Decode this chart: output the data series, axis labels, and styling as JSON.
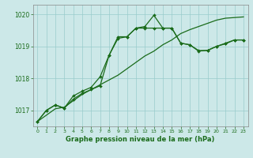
{
  "title": "Graphe pression niveau de la mer (hPa)",
  "bg_color": "#cce8e8",
  "grid_color": "#99cccc",
  "line_color": "#1a6b1a",
  "xlim": [
    -0.5,
    23.5
  ],
  "ylim": [
    1016.5,
    1020.3
  ],
  "yticks": [
    1017,
    1018,
    1019,
    1020
  ],
  "xticks": [
    0,
    1,
    2,
    3,
    4,
    5,
    6,
    7,
    8,
    9,
    10,
    11,
    12,
    13,
    14,
    15,
    16,
    17,
    18,
    19,
    20,
    21,
    22,
    23
  ],
  "line1_x": [
    0,
    1,
    2,
    3,
    4,
    5,
    6,
    7,
    8,
    9,
    10,
    11,
    12,
    13,
    14,
    15,
    16,
    17,
    18,
    19,
    20,
    21,
    22,
    23
  ],
  "line1_y": [
    1016.65,
    1016.85,
    1017.05,
    1017.1,
    1017.3,
    1017.5,
    1017.65,
    1017.8,
    1017.95,
    1018.1,
    1018.3,
    1018.5,
    1018.7,
    1018.85,
    1019.05,
    1019.2,
    1019.4,
    1019.52,
    1019.62,
    1019.72,
    1019.82,
    1019.88,
    1019.9,
    1019.92
  ],
  "line2_x": [
    0,
    1,
    2,
    3,
    4,
    5,
    6,
    7,
    8,
    9,
    10,
    11,
    12,
    13,
    14,
    15,
    16,
    17,
    18,
    19,
    20,
    21,
    22,
    23
  ],
  "line2_y": [
    1016.65,
    1017.0,
    1017.17,
    1017.07,
    1017.35,
    1017.53,
    1017.65,
    1017.77,
    1018.72,
    1019.25,
    1019.3,
    1019.57,
    1019.57,
    1019.57,
    1019.57,
    1019.57,
    1019.1,
    1019.05,
    1018.85,
    1018.88,
    1019.0,
    1019.08,
    1019.2,
    1019.2
  ],
  "line3_x": [
    0,
    1,
    2,
    3,
    4,
    5,
    6,
    7,
    8,
    9,
    10,
    11,
    12,
    13,
    14,
    15,
    16,
    17,
    18,
    19,
    20,
    21,
    22,
    23
  ],
  "line3_y": [
    1016.65,
    1017.0,
    1017.17,
    1017.07,
    1017.45,
    1017.6,
    1017.72,
    1018.05,
    1018.72,
    1019.3,
    1019.3,
    1019.57,
    1019.62,
    1019.97,
    1019.57,
    1019.57,
    1019.1,
    1019.05,
    1018.87,
    1018.87,
    1019.0,
    1019.1,
    1019.2,
    1019.2
  ]
}
